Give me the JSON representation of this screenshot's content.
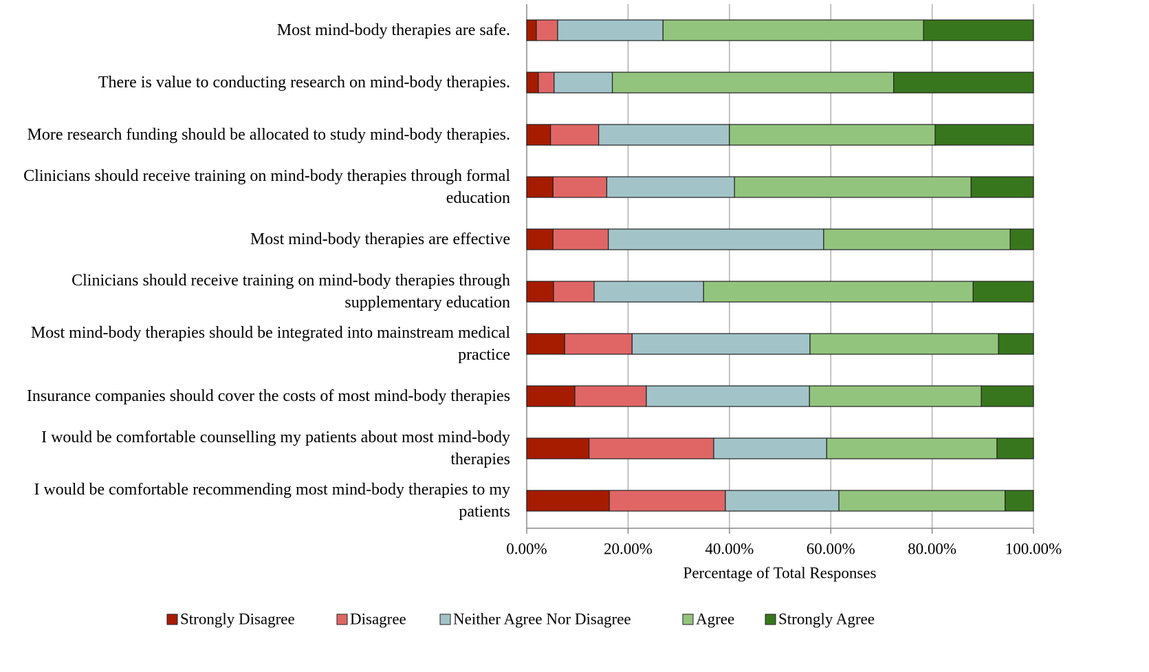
{
  "chart_data": {
    "type": "stacked-bar-horizontal",
    "categories": [
      "Most mind-body therapies are safe.",
      "There is value to conducting research on mind-body therapies.",
      "More research funding should be allocated to study mind-body therapies.",
      "Clinicians should receive training on mind-body therapies through formal education",
      "Most mind-body therapies are effective",
      "Clinicians should receive training on mind-body therapies through supplementary education",
      "Most mind-body therapies should be integrated into mainstream medical practice",
      "Insurance companies should cover the costs of most mind-body therapies",
      "I would be comfortable counselling my patients about most mind-body therapies",
      "I would be comfortable recommending most mind-body therapies to my patients"
    ],
    "series": [
      {
        "name": "Strongly Disagree",
        "color": "#a61c00",
        "values": [
          1.9,
          2.3,
          4.7,
          5.2,
          5.2,
          5.3,
          7.5,
          9.5,
          12.3,
          16.3
        ]
      },
      {
        "name": "Disagree",
        "color": "#e06666",
        "values": [
          4.2,
          3.1,
          9.5,
          10.6,
          10.9,
          8.0,
          13.3,
          14.1,
          24.6,
          22.9
        ]
      },
      {
        "name": "Neither Agree Nor Disagree",
        "color": "#a2c4c9",
        "values": [
          20.8,
          11.5,
          25.8,
          25.2,
          42.5,
          21.6,
          35.1,
          32.2,
          22.3,
          22.4
        ]
      },
      {
        "name": "Agree",
        "color": "#93c47d",
        "values": [
          51.4,
          55.5,
          40.6,
          46.7,
          36.8,
          53.2,
          37.2,
          33.9,
          33.6,
          32.8
        ]
      },
      {
        "name": "Strongly Agree",
        "color": "#38761d",
        "values": [
          21.7,
          27.6,
          19.4,
          12.3,
          4.6,
          11.9,
          6.9,
          10.3,
          7.2,
          5.6
        ]
      }
    ],
    "xlabel": "Percentage of Total Responses",
    "xlim": [
      0,
      100
    ],
    "xticks": [
      {
        "value": 0,
        "label": "0.00%"
      },
      {
        "value": 20,
        "label": "20.00%"
      },
      {
        "value": 40,
        "label": "40.00%"
      },
      {
        "value": 60,
        "label": "60.00%"
      },
      {
        "value": 80,
        "label": "80.00%"
      },
      {
        "value": 100,
        "label": "100.00%"
      }
    ],
    "grid": true,
    "legend": "bottom"
  }
}
